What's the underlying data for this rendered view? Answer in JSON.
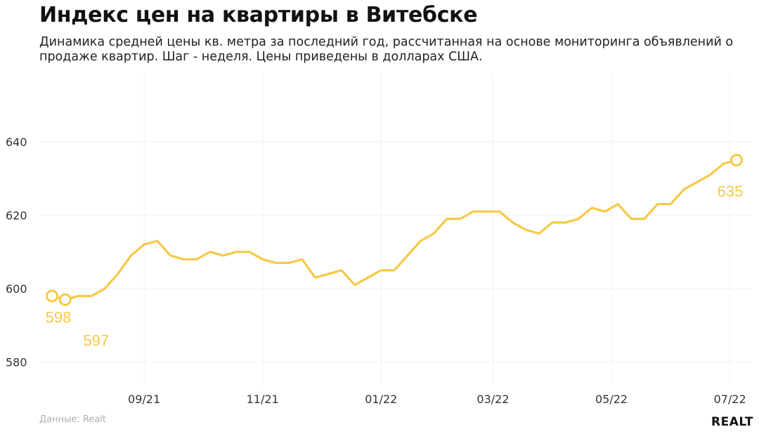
{
  "header": {
    "title": "Индекс цен на квартиры в Витебске",
    "subtitle": "Динамика средней цены кв. метра за последний год, рассчитанная на основе мониторинга объявлений о продаже квартир. Шаг - неделя. Цены приведены в долларах США."
  },
  "footer": {
    "source": "Данные: Realt",
    "logo_text": "REALT"
  },
  "colors": {
    "line": "#f7c948",
    "grid": "#f2f2f2",
    "tick_text": "#333333"
  },
  "chart_data": {
    "type": "line",
    "title": "Индекс цен на квартиры в Витебске",
    "xlabel": "",
    "ylabel": "",
    "ylim": [
      575,
      655
    ],
    "yticks": [
      580,
      600,
      620,
      640
    ],
    "grid": true,
    "x_ticks": [
      {
        "label": "09/21",
        "pos": 7
      },
      {
        "label": "11/21",
        "pos": 16
      },
      {
        "label": "01/22",
        "pos": 25
      },
      {
        "label": "03/22",
        "pos": 33.5
      },
      {
        "label": "05/22",
        "pos": 42.5
      },
      {
        "label": "07/22",
        "pos": 51.5
      }
    ],
    "series": [
      {
        "values": [
          598,
          597,
          598,
          598,
          600,
          604,
          609,
          612,
          613,
          609,
          608,
          608,
          610,
          609,
          610,
          610,
          608,
          607,
          607,
          608,
          603,
          604,
          605,
          601,
          603,
          605,
          605,
          609,
          613,
          615,
          619,
          619,
          621,
          621,
          621,
          618,
          616,
          615,
          618,
          618,
          619,
          622,
          621,
          623,
          619,
          619,
          623,
          623,
          627,
          629,
          631,
          634,
          635
        ]
      }
    ],
    "annotations": [
      {
        "index": 0,
        "value": 598,
        "label": "598"
      },
      {
        "index": 1,
        "value": 597,
        "label": "597"
      },
      {
        "index": 52,
        "value": 635,
        "label": "635"
      }
    ]
  }
}
